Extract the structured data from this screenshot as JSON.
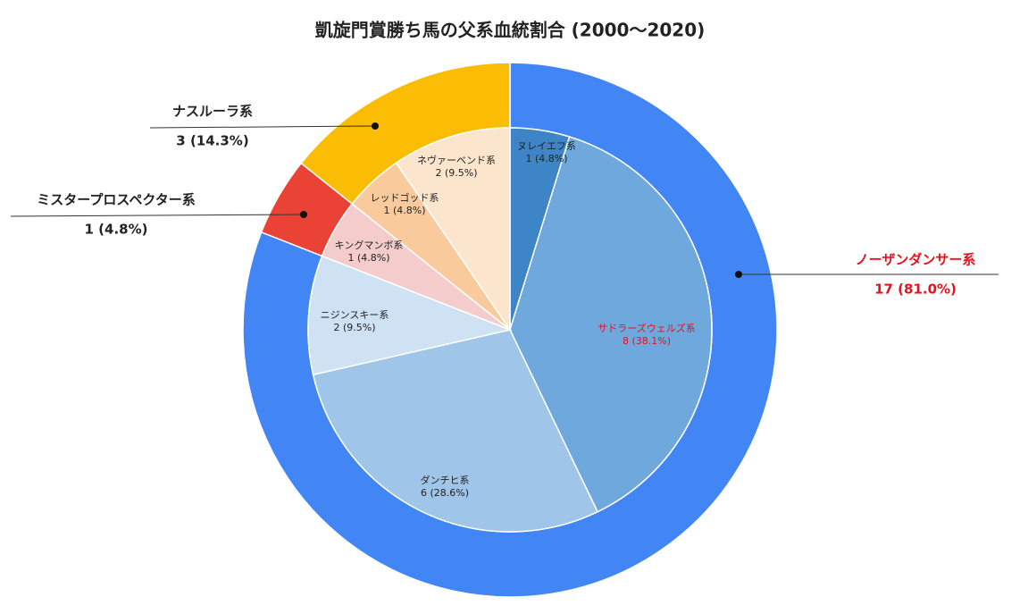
{
  "chart_data": {
    "type": "sunburst",
    "title": "凱旋門賞勝ち馬の父系血統割合 (2000～2020)",
    "rings": [
      {
        "categories": [
          "ノーザンダンサー系",
          "ミスタープロスペクター系",
          "ナスルーラ系"
        ],
        "values": [
          17,
          1,
          3
        ],
        "value_labels": [
          "17 (81.0%)",
          "1 (4.8%)",
          "3 (14.3%)"
        ],
        "colors": [
          "#4285f4",
          "#ea4335",
          "#fbbc04"
        ],
        "label_colors": [
          "#e8101a",
          "#222222",
          "#222222"
        ]
      },
      {
        "categories": [
          "ヌレイエフ系",
          "サドラーズウェルズ系",
          "ダンチヒ系",
          "ニジンスキー系",
          "キングマンボ系",
          "レッドゴッド系",
          "ネヴァーベンド系"
        ],
        "values": [
          1,
          8,
          6,
          2,
          1,
          1,
          2
        ],
        "value_labels": [
          "1 (4.8%)",
          "8 (38.1%)",
          "6 (28.6%)",
          "2 (9.5%)",
          "1 (4.8%)",
          "1 (4.8%)",
          "2 (9.5%)"
        ],
        "colors": [
          "#3d85c6",
          "#6fa8dc",
          "#9fc5e8",
          "#cfe2f3",
          "#f4cccc",
          "#f9cb9c",
          "#fce5cd"
        ],
        "label_colors": [
          "#222222",
          "#e8101a",
          "#222222",
          "#222222",
          "#222222",
          "#222222",
          "#222222"
        ]
      }
    ]
  }
}
